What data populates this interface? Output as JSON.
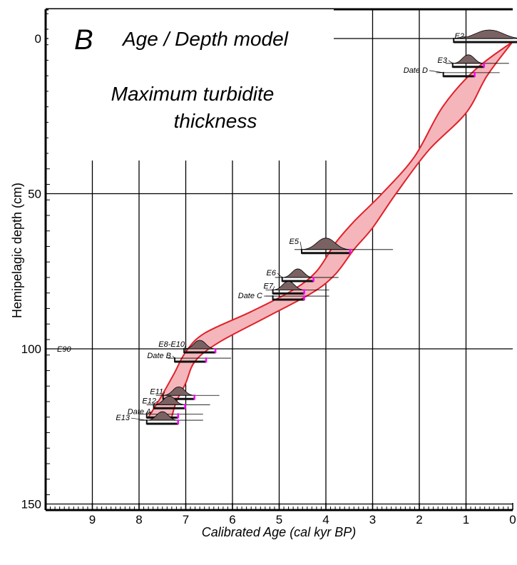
{
  "chart_data": {
    "type": "line",
    "panel_letter": "B",
    "title": "Age / Depth model",
    "subtitle_line1": "Maximum turbidite",
    "subtitle_line2": "thickness",
    "xlabel": "Calibrated Age (cal kyr BP)",
    "ylabel": "Hemipelagic depth (cm)",
    "x_reversed": true,
    "xlim": [
      10,
      0
    ],
    "ylim": [
      0,
      158
    ],
    "y_inverted": true,
    "x_ticks": [
      9,
      8,
      7,
      6,
      5,
      4,
      3,
      2,
      1,
      0
    ],
    "y_ticks": [
      0,
      50,
      100,
      150
    ],
    "grid": true,
    "colors": {
      "envelope_fill": "#f4b6ba",
      "envelope_line": "#e0202a",
      "distribution_fill": "#7a6262",
      "range_bar": "#111111",
      "marker": "#ff00ff"
    },
    "series": [
      {
        "name": "",
        "role": "envelope-older-bound",
        "points": [
          [
            0.0,
            1
          ],
          [
            0.8,
            10
          ],
          [
            1.5,
            22
          ],
          [
            2.1,
            38
          ],
          [
            2.8,
            50
          ],
          [
            3.4,
            59
          ],
          [
            3.8,
            66
          ],
          [
            4.2,
            75
          ],
          [
            4.7,
            81
          ],
          [
            5.6,
            88
          ],
          [
            6.6,
            95
          ],
          [
            7.0,
            101
          ],
          [
            7.25,
            108
          ],
          [
            7.55,
            116
          ],
          [
            7.8,
            122
          ]
        ]
      },
      {
        "name": "",
        "role": "envelope-younger-bound",
        "points": [
          [
            0.0,
            1
          ],
          [
            0.55,
            12
          ],
          [
            1.0,
            24
          ],
          [
            1.8,
            36
          ],
          [
            2.5,
            50
          ],
          [
            3.0,
            61
          ],
          [
            3.4,
            68
          ],
          [
            3.8,
            76
          ],
          [
            4.3,
            82
          ],
          [
            5.3,
            90
          ],
          [
            6.3,
            98
          ],
          [
            6.8,
            104
          ],
          [
            7.0,
            111
          ],
          [
            7.2,
            117
          ],
          [
            7.3,
            122
          ]
        ]
      }
    ],
    "labels": [
      "E2",
      "E3",
      "Date D",
      "E5",
      "E6",
      "E7",
      "Date C",
      "E8-E10",
      "Date B",
      "E11",
      "E12",
      "Date A",
      "E13",
      "E90"
    ],
    "events": [
      {
        "label": "E2",
        "depth": 0,
        "age": 0.5
      },
      {
        "label": "E3",
        "depth": 8,
        "age": 0.95
      },
      {
        "label": "Date D",
        "depth": 11,
        "age": 1.15
      },
      {
        "label": "E5",
        "depth": 68,
        "age": 4.0
      },
      {
        "label": "E6",
        "depth": 77,
        "age": 4.6
      },
      {
        "label": "E7",
        "depth": 81,
        "age": 4.8
      },
      {
        "label": "Date C",
        "depth": 83,
        "age": 4.8
      },
      {
        "label": "E8-E10",
        "depth": 100,
        "age": 6.7
      },
      {
        "label": "Date B",
        "depth": 103,
        "age": 6.9
      },
      {
        "label": "E11",
        "depth": 115,
        "age": 7.15
      },
      {
        "label": "E12",
        "depth": 118,
        "age": 7.35
      },
      {
        "label": "Date A",
        "depth": 121,
        "age": 7.5
      },
      {
        "label": "E13",
        "depth": 123,
        "age": 7.5
      }
    ]
  }
}
